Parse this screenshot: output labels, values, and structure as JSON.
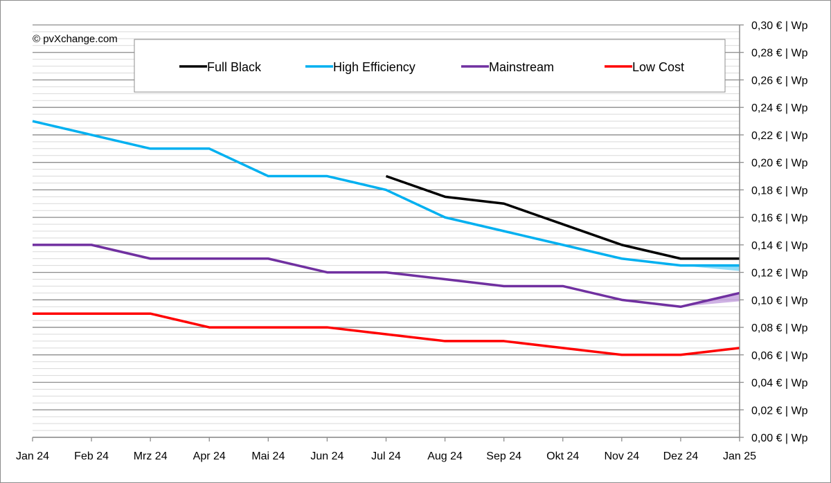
{
  "copyright": "© pvXchange.com",
  "chart_data": {
    "type": "line",
    "title": "",
    "xlabel": "",
    "ylabel": "",
    "categories": [
      "Jan 24",
      "Feb 24",
      "Mrz 24",
      "Apr 24",
      "Mai 24",
      "Jun 24",
      "Jul 24",
      "Aug 24",
      "Sep 24",
      "Okt 24",
      "Nov 24",
      "Dez 24",
      "Jan 25"
    ],
    "ylim": [
      0,
      0.3
    ],
    "y_axis_side": "right",
    "y_ticks": [
      0.0,
      0.02,
      0.04,
      0.06,
      0.08,
      0.1,
      0.12,
      0.14,
      0.16,
      0.18,
      0.2,
      0.22,
      0.24,
      0.26,
      0.28,
      0.3
    ],
    "y_tick_labels": [
      "0,00 € | Wp",
      "0,02 € | Wp",
      "0,04 € | Wp",
      "0,06 € | Wp",
      "0,08 € | Wp",
      "0,10 € | Wp",
      "0,12 € | Wp",
      "0,14 € | Wp",
      "0,16 € | Wp",
      "0,18 € | Wp",
      "0,20 € | Wp",
      "0,22 € | Wp",
      "0,24 € | Wp",
      "0,26 € | Wp",
      "0,28 € | Wp",
      "0,30 € | Wp"
    ],
    "grid": true,
    "legend_position": "top",
    "series": [
      {
        "name": "Full Black",
        "color": "#000000",
        "values": [
          null,
          null,
          null,
          null,
          null,
          null,
          0.19,
          0.175,
          0.17,
          0.155,
          0.14,
          0.13,
          0.13
        ]
      },
      {
        "name": "High Efficiency",
        "color": "#00b0f0",
        "values": [
          0.23,
          0.22,
          0.21,
          0.21,
          0.19,
          0.19,
          0.18,
          0.16,
          0.15,
          0.14,
          0.13,
          0.125,
          0.125
        ],
        "range_band": {
          "from_index": 11,
          "low": [
            0.125,
            0.121
          ],
          "high": [
            0.125,
            0.125
          ],
          "color": "#7fd7f7"
        }
      },
      {
        "name": "Mainstream",
        "color": "#7030a0",
        "values": [
          0.14,
          0.14,
          0.13,
          0.13,
          0.13,
          0.12,
          0.12,
          0.115,
          0.11,
          0.11,
          0.1,
          0.095,
          0.105
        ],
        "range_band": {
          "from_index": 11,
          "low": [
            0.095,
            0.099
          ],
          "high": [
            0.095,
            0.105
          ],
          "color": "#c7a4df"
        }
      },
      {
        "name": "Low Cost",
        "color": "#ff0000",
        "values": [
          0.09,
          0.09,
          0.09,
          0.08,
          0.08,
          0.08,
          0.075,
          0.07,
          0.07,
          0.065,
          0.06,
          0.06,
          0.065
        ]
      }
    ]
  }
}
